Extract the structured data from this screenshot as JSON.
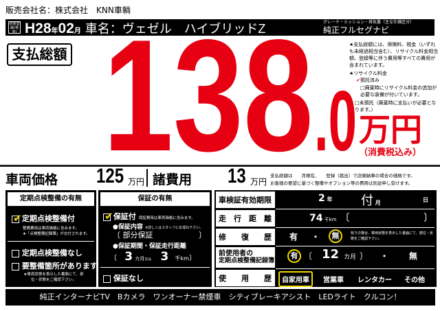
{
  "seller": "販売会社名：株式会社　KNN車輌",
  "header": {
    "first_reg_label": "初度登録(検査)",
    "era_year": "H28",
    "year_unit": "年",
    "month": "02",
    "month_unit": "月",
    "car_name": "車名：ヴェゼル　ハイブリッドZ",
    "grade_label": "グレード・ミッション・排気量（主な仕様区分）",
    "grade_value": "純正フルセグナビ"
  },
  "total": {
    "label": "支払総額",
    "integer": "138",
    "decimal": ".0",
    "unit": "万円",
    "tax_note": "（消費税込み）",
    "price_color": "#e60012"
  },
  "notes": {
    "total_note": "★支払総額には、保険料、税金（いずれも未経過相当含む）、リサイクル料金相当額、登録等に伴う費用等すべての費用が含まれています。",
    "recycle_title": "★リサイクル料金",
    "recycle_paid": "預託済み",
    "recycle_extra": "廃棄時にリサイクル料金の追加が必要な装備が付いています。",
    "recycle_unpaid": "未預託（廃棄時に支払いが必要となります。）"
  },
  "prices": {
    "vehicle_label": "車両価格",
    "vehicle_value": "125",
    "unit": "万円",
    "fees_label": "諸費用",
    "fees_value": "13",
    "note1": "支払総額は　　月現在、　　登録（届出）で店頭納車の場合の価格です。",
    "note2": "お客様の要望に基づく整備やオプション等の費用は別途申し受けます。"
  },
  "inspection": {
    "title": "定期点検整備の有無",
    "with": "定期点検整備付",
    "with_checked": true,
    "with_note1": "整備費用は車両価格に含みます。",
    "with_note2": "★「点検整備記録簿」が交付されます。",
    "without": "定期点検整備なし",
    "needs_repair": "要整備箇所があります",
    "repair_note": "★車両状態を表示した書面にて、部位・状態をご確認下さい。"
  },
  "warranty": {
    "title": "保証の有無",
    "with": "保証付",
    "with_checked": true,
    "with_note": "保証費用は車両価格に含みます。",
    "content_label": "●保証内容",
    "content_note": "※詳しくはスタッフにお尋ね下さい。",
    "content_value": "部分保証",
    "period_label": "●保証期間・保証走行距離",
    "months": "3",
    "months_unit": "カ月",
    "or": "又は",
    "km": "3",
    "km_unit": "千km",
    "none": "保証なし"
  },
  "details": {
    "shaken_label": "車検証有効期限",
    "shaken_year": "2",
    "year_unit": "年",
    "shaken_month": "付",
    "month_unit": "月",
    "day_unit": "日",
    "mileage_label": "走　行　距　離",
    "mileage_value": "74",
    "mileage_unit": "千km",
    "repair_label": "修　　復　　歴",
    "repair_yes": "有",
    "repair_no": "無",
    "repair_selected": "無",
    "repair_note": "有りの場合、車両状態を表示した書面にて、部位・状態をご確認下さい。",
    "record_label1": "前使用者の",
    "record_label2": "定期点検整備記録簿",
    "record_yes": "有",
    "record_months": "12",
    "record_unit": "カ月",
    "record_no": "無",
    "record_selected": "有",
    "usage_label": "使　　用　　歴",
    "usage_options": [
      "自家用車",
      "営業車",
      "レンタカー",
      "その他"
    ],
    "usage_selected": "自家用車"
  },
  "footer": "純正インターナビTV　Bカメラ　ワンオーナー禁煙車　シティブレーキアシスト　LEDライト　クルコン！"
}
